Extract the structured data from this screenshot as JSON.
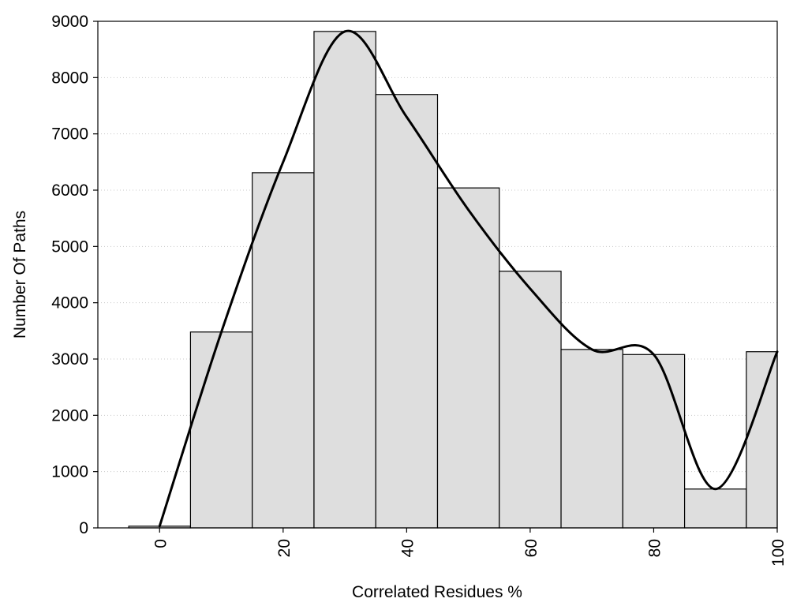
{
  "chart_data": {
    "type": "bar",
    "xlabel": "Correlated Residues %",
    "ylabel": "Number Of Paths",
    "xlim": [
      -10,
      100
    ],
    "ylim": [
      0,
      9000
    ],
    "bin_width": 10,
    "x_ticks": [
      "0",
      "20",
      "40",
      "60",
      "80",
      "100"
    ],
    "y_ticks": [
      "0",
      "1000",
      "2000",
      "3000",
      "4000",
      "5000",
      "6000",
      "7000",
      "8000",
      "9000"
    ],
    "grid": "horizontal dotted",
    "bar_color": "#dedede",
    "series": [
      {
        "type": "bar",
        "x": [
          0,
          10,
          20,
          30,
          40,
          50,
          60,
          70,
          80,
          90,
          100
        ],
        "values": [
          30,
          3480,
          6310,
          8820,
          7700,
          6040,
          4560,
          3170,
          3080,
          690,
          3130
        ]
      },
      {
        "type": "line",
        "smooth": true,
        "x": [
          0,
          10,
          20,
          30,
          40,
          50,
          60,
          70,
          80,
          90,
          100
        ],
        "values": [
          30,
          3480,
          6500,
          8820,
          7300,
          5650,
          4250,
          3170,
          3080,
          690,
          3130
        ]
      }
    ]
  }
}
